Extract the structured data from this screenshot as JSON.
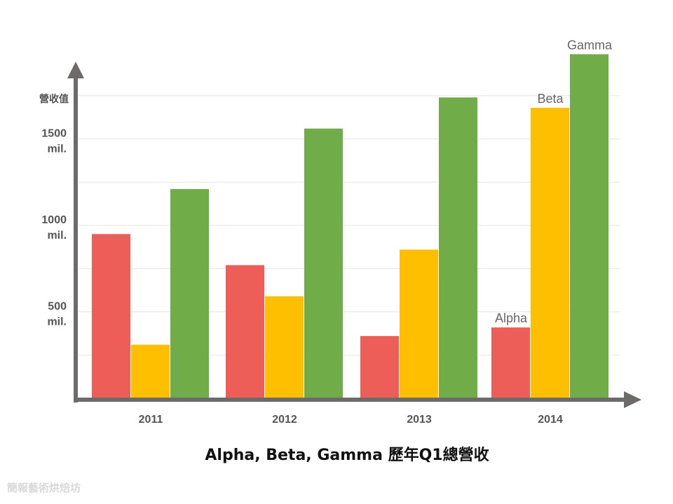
{
  "chart_data": {
    "type": "bar",
    "title": "Alpha, Beta, Gamma 歷年Q1總營收",
    "ylabel": "營收值",
    "xlabel": "",
    "ylim": [
      0,
      2000
    ],
    "yticks": [
      {
        "value": 500,
        "line1": "500",
        "line2": "mil."
      },
      {
        "value": 1000,
        "line1": "1000",
        "line2": "mil."
      },
      {
        "value": 1500,
        "line1": "1500",
        "line2": "mil."
      }
    ],
    "grid": true,
    "categories": [
      "2011",
      "2012",
      "2013",
      "2014"
    ],
    "series": [
      {
        "name": "Alpha",
        "color": "#ec5e57",
        "values": [
          950,
          770,
          360,
          410
        ]
      },
      {
        "name": "Beta",
        "color": "#fdbf00",
        "values": [
          310,
          590,
          860,
          1680
        ]
      },
      {
        "name": "Gamma",
        "color": "#70ac47",
        "values": [
          1210,
          1560,
          1740,
          1990
        ]
      }
    ],
    "series_labels_on_category": "2014"
  },
  "watermark": "簡報藝術烘焙坊"
}
